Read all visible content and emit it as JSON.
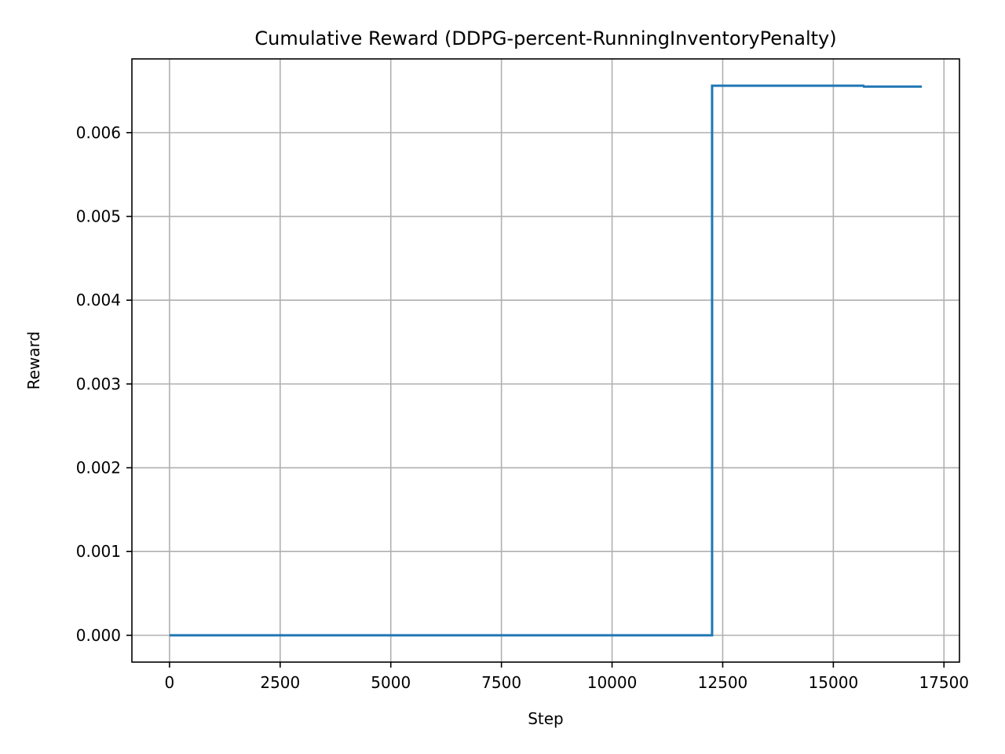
{
  "chart_data": {
    "type": "line",
    "title": "Cumulative Reward (DDPG-percent-RunningInventoryPenalty)",
    "xlabel": "Step",
    "ylabel": "Reward",
    "xlim": [
      -850,
      17850
    ],
    "ylim": [
      -0.00032,
      0.00688
    ],
    "grid": true,
    "xticks": [
      0,
      2500,
      5000,
      7500,
      10000,
      12500,
      15000,
      17500
    ],
    "xtick_labels": [
      "0",
      "2500",
      "5000",
      "7500",
      "10000",
      "12500",
      "15000",
      "17500"
    ],
    "yticks": [
      0.0,
      0.001,
      0.002,
      0.003,
      0.004,
      0.005,
      0.006
    ],
    "ytick_labels": [
      "0.000",
      "0.001",
      "0.002",
      "0.003",
      "0.004",
      "0.005",
      "0.006"
    ],
    "series": [
      {
        "color": "#1f77b4",
        "x": [
          0,
          12260,
          12260,
          15680,
          15690,
          17000
        ],
        "y": [
          0.0,
          0.0,
          0.00656,
          0.00656,
          0.00655,
          0.00655
        ]
      }
    ]
  }
}
